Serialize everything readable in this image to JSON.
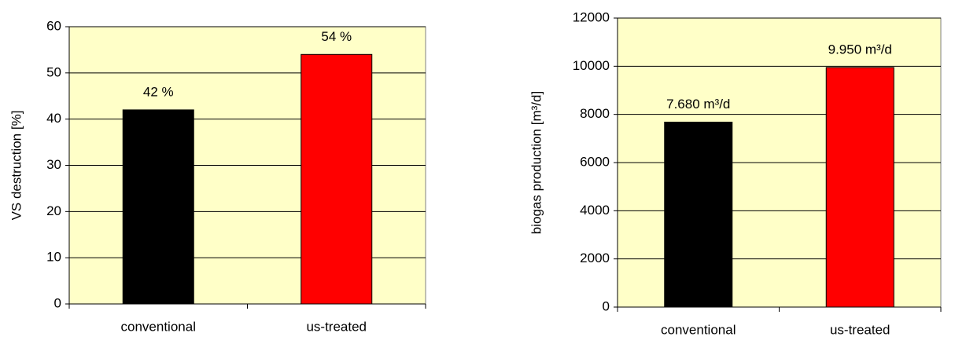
{
  "chart_data": [
    {
      "type": "bar",
      "y_label": "VS destruction [%]",
      "categories": [
        "conventional",
        "us-treated"
      ],
      "values": [
        42,
        54
      ],
      "value_labels": [
        "42 %",
        "54 %"
      ],
      "colors": [
        "#000000",
        "#ff0000"
      ],
      "ylim": [
        0,
        60
      ],
      "yticks": [
        0,
        10,
        20,
        30,
        40,
        50,
        60
      ],
      "grid": true,
      "background": "#ffffc8"
    },
    {
      "type": "bar",
      "y_label": "biogas production [m³/d]",
      "categories": [
        "conventional",
        "us-treated"
      ],
      "values": [
        7680,
        9950
      ],
      "value_labels": [
        "7.680 m³/d",
        "9.950 m³/d"
      ],
      "colors": [
        "#000000",
        "#ff0000"
      ],
      "ylim": [
        0,
        12000
      ],
      "yticks": [
        0,
        2000,
        4000,
        6000,
        8000,
        10000,
        12000
      ],
      "grid": true,
      "background": "#ffffc8"
    }
  ]
}
